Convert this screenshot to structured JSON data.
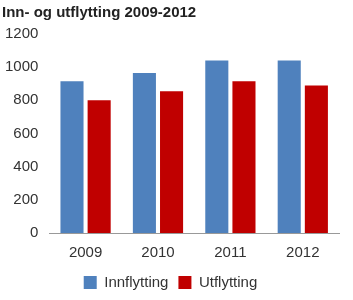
{
  "chart_data": {
    "type": "bar",
    "title": "Inn- og utflytting 2009-2012",
    "categories": [
      "2009",
      "2010",
      "2011",
      "2012"
    ],
    "series": [
      {
        "name": "Innflytting",
        "color": "#4f81bd",
        "values": [
          915,
          965,
          1040,
          1040
        ]
      },
      {
        "name": "Utflytting",
        "color": "#c00000",
        "values": [
          800,
          855,
          915,
          890
        ]
      }
    ],
    "ylim": [
      0,
      1200
    ],
    "yticks": [
      0,
      200,
      400,
      600,
      800,
      1000,
      1200
    ],
    "grid": false,
    "legend": "bottom"
  }
}
